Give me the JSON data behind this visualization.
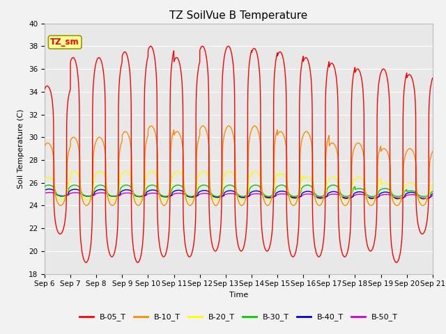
{
  "title": "TZ SoilVue B Temperature",
  "xlabel": "Time",
  "ylabel": "Soil Temperature (C)",
  "ylim": [
    18,
    40
  ],
  "yticks": [
    18,
    20,
    22,
    24,
    26,
    28,
    30,
    32,
    34,
    36,
    38,
    40
  ],
  "num_days": 15,
  "xtick_labels": [
    "Sep 6",
    "Sep 7",
    "Sep 8",
    "Sep 9",
    "Sep 10",
    "Sep 11",
    "Sep 12",
    "Sep 13",
    "Sep 14",
    "Sep 15",
    "Sep 16",
    "Sep 17",
    "Sep 18",
    "Sep 19",
    "Sep 20",
    "Sep 21"
  ],
  "series_names": [
    "B-05_T",
    "B-10_T",
    "B-20_T",
    "B-30_T",
    "B-40_T",
    "B-50_T"
  ],
  "series_colors": [
    "#FF0000",
    "#FF8C00",
    "#FFFF00",
    "#00CC00",
    "#0000CC",
    "#CC00CC"
  ],
  "series_lw": [
    1.0,
    1.0,
    1.0,
    1.0,
    1.0,
    1.0
  ],
  "legend_label": "TZ_sm",
  "legend_box_facecolor": "#FFFF99",
  "legend_box_edgecolor": "#999900",
  "plot_bg_color": "#E8E8E8",
  "fig_bg_color": "#F2F2F2",
  "grid_color": "#FFFFFF",
  "title_fontsize": 11,
  "axis_label_fontsize": 8,
  "tick_fontsize": 7.5,
  "legend_fontsize": 8
}
